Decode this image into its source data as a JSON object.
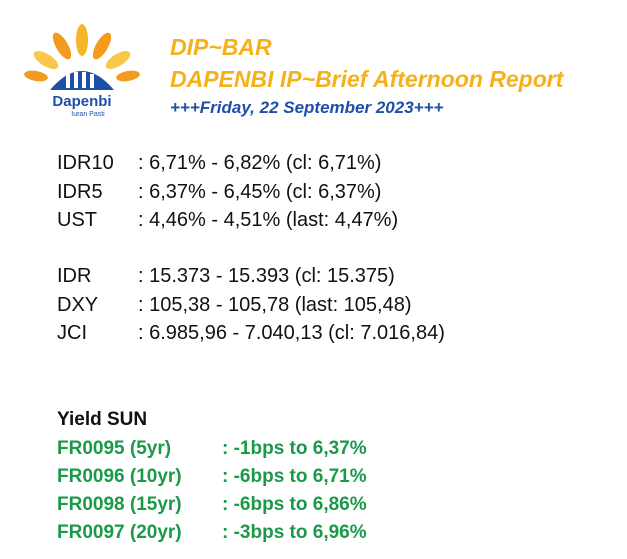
{
  "header": {
    "title": "DIP~BAR",
    "subtitle": "DAPENBI IP~Brief Afternoon Report",
    "date": "+++Friday, 22 September 2023+++"
  },
  "logo": {
    "name": "Dapenbi",
    "tagline": "Iuran Pasti"
  },
  "markets": [
    {
      "label": "IDR10",
      "value": ": 6,71% - 6,82% (cl: 6,71%)"
    },
    {
      "label": "IDR5",
      "value": ": 6,37% - 6,45% (cl: 6,37%)"
    },
    {
      "label": "UST",
      "value": ": 4,46% - 4,51% (last: 4,47%)"
    },
    {
      "label": "IDR",
      "value": ": 15.373 - 15.393 (cl: 15.375)"
    },
    {
      "label": "DXY",
      "value": ": 105,38 - 105,78 (last: 105,48)"
    },
    {
      "label": "JCI",
      "value": ": 6.985,96 - 7.040,13 (cl: 7.016,84)"
    }
  ],
  "yield": {
    "title": "Yield SUN",
    "rows": [
      {
        "label": "FR0095 (5yr)",
        "value": ": -1bps to 6,37%"
      },
      {
        "label": "FR0096 (10yr)",
        "value": ": -6bps to 6,71%"
      },
      {
        "label": "FR0098 (15yr)",
        "value": ": -6bps to 6,86%"
      },
      {
        "label": "FR0097 (20yr)",
        "value": ": -3bps to 6,96%"
      }
    ]
  }
}
